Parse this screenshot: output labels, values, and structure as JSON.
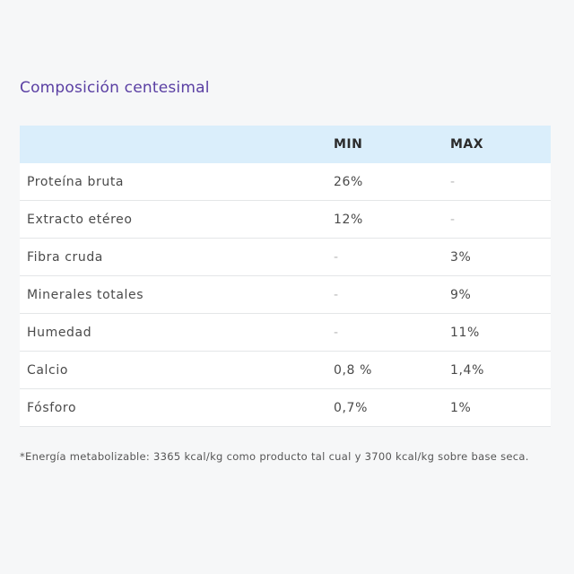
{
  "section": {
    "title": "Composición centesimal"
  },
  "table": {
    "headers": {
      "name": "",
      "min": "MIN",
      "max": "MAX"
    },
    "rows": [
      {
        "name": "Proteína bruta",
        "min": "26%",
        "max": "-"
      },
      {
        "name": "Extracto etéreo",
        "min": "12%",
        "max": "-"
      },
      {
        "name": "Fibra cruda",
        "min": "-",
        "max": "3%"
      },
      {
        "name": "Minerales totales",
        "min": "-",
        "max": "9%"
      },
      {
        "name": "Humedad",
        "min": "-",
        "max": "11%"
      },
      {
        "name": "Calcio",
        "min": "0,8 %",
        "max": "1,4%"
      },
      {
        "name": "Fósforo",
        "min": "0,7%",
        "max": "1%"
      }
    ]
  },
  "footnote": "*Energía metabolizable: 3365 kcal/kg como producto tal cual y 3700 kcal/kg sobre base seca.",
  "colors": {
    "title": "#5a3fa3",
    "header_bg": "#daeefb",
    "page_bg": "#f6f7f8"
  }
}
